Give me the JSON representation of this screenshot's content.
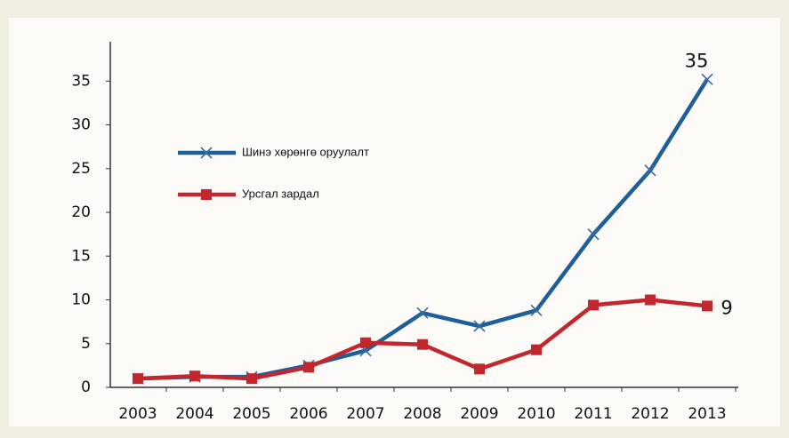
{
  "chart_data": {
    "type": "line",
    "categories": [
      "2003",
      "2004",
      "2005",
      "2006",
      "2007",
      "2008",
      "2009",
      "2010",
      "2011",
      "2012",
      "2013"
    ],
    "series": [
      {
        "name": "Шинэ хөрөнгө оруулалт",
        "color": "#1f5f99",
        "marker": "x",
        "values": [
          1,
          1.2,
          1.2,
          2.5,
          4.2,
          8.5,
          7,
          8.8,
          17.5,
          24.8,
          35.2
        ],
        "value_labels": [
          null,
          null,
          null,
          null,
          null,
          null,
          null,
          null,
          null,
          null,
          "35"
        ]
      },
      {
        "name": "Урсгал зардал",
        "color": "#c1272d",
        "marker": "square",
        "values": [
          1,
          1.3,
          1,
          2.3,
          5.1,
          4.9,
          2.1,
          4.3,
          9.4,
          10,
          9.3
        ],
        "value_labels": [
          null,
          null,
          null,
          null,
          null,
          null,
          null,
          null,
          null,
          null,
          "9"
        ]
      }
    ],
    "ylim": [
      0,
      39.5
    ],
    "yticks": [
      0,
      5,
      10,
      15,
      20,
      25,
      30,
      35
    ],
    "grid": false
  }
}
